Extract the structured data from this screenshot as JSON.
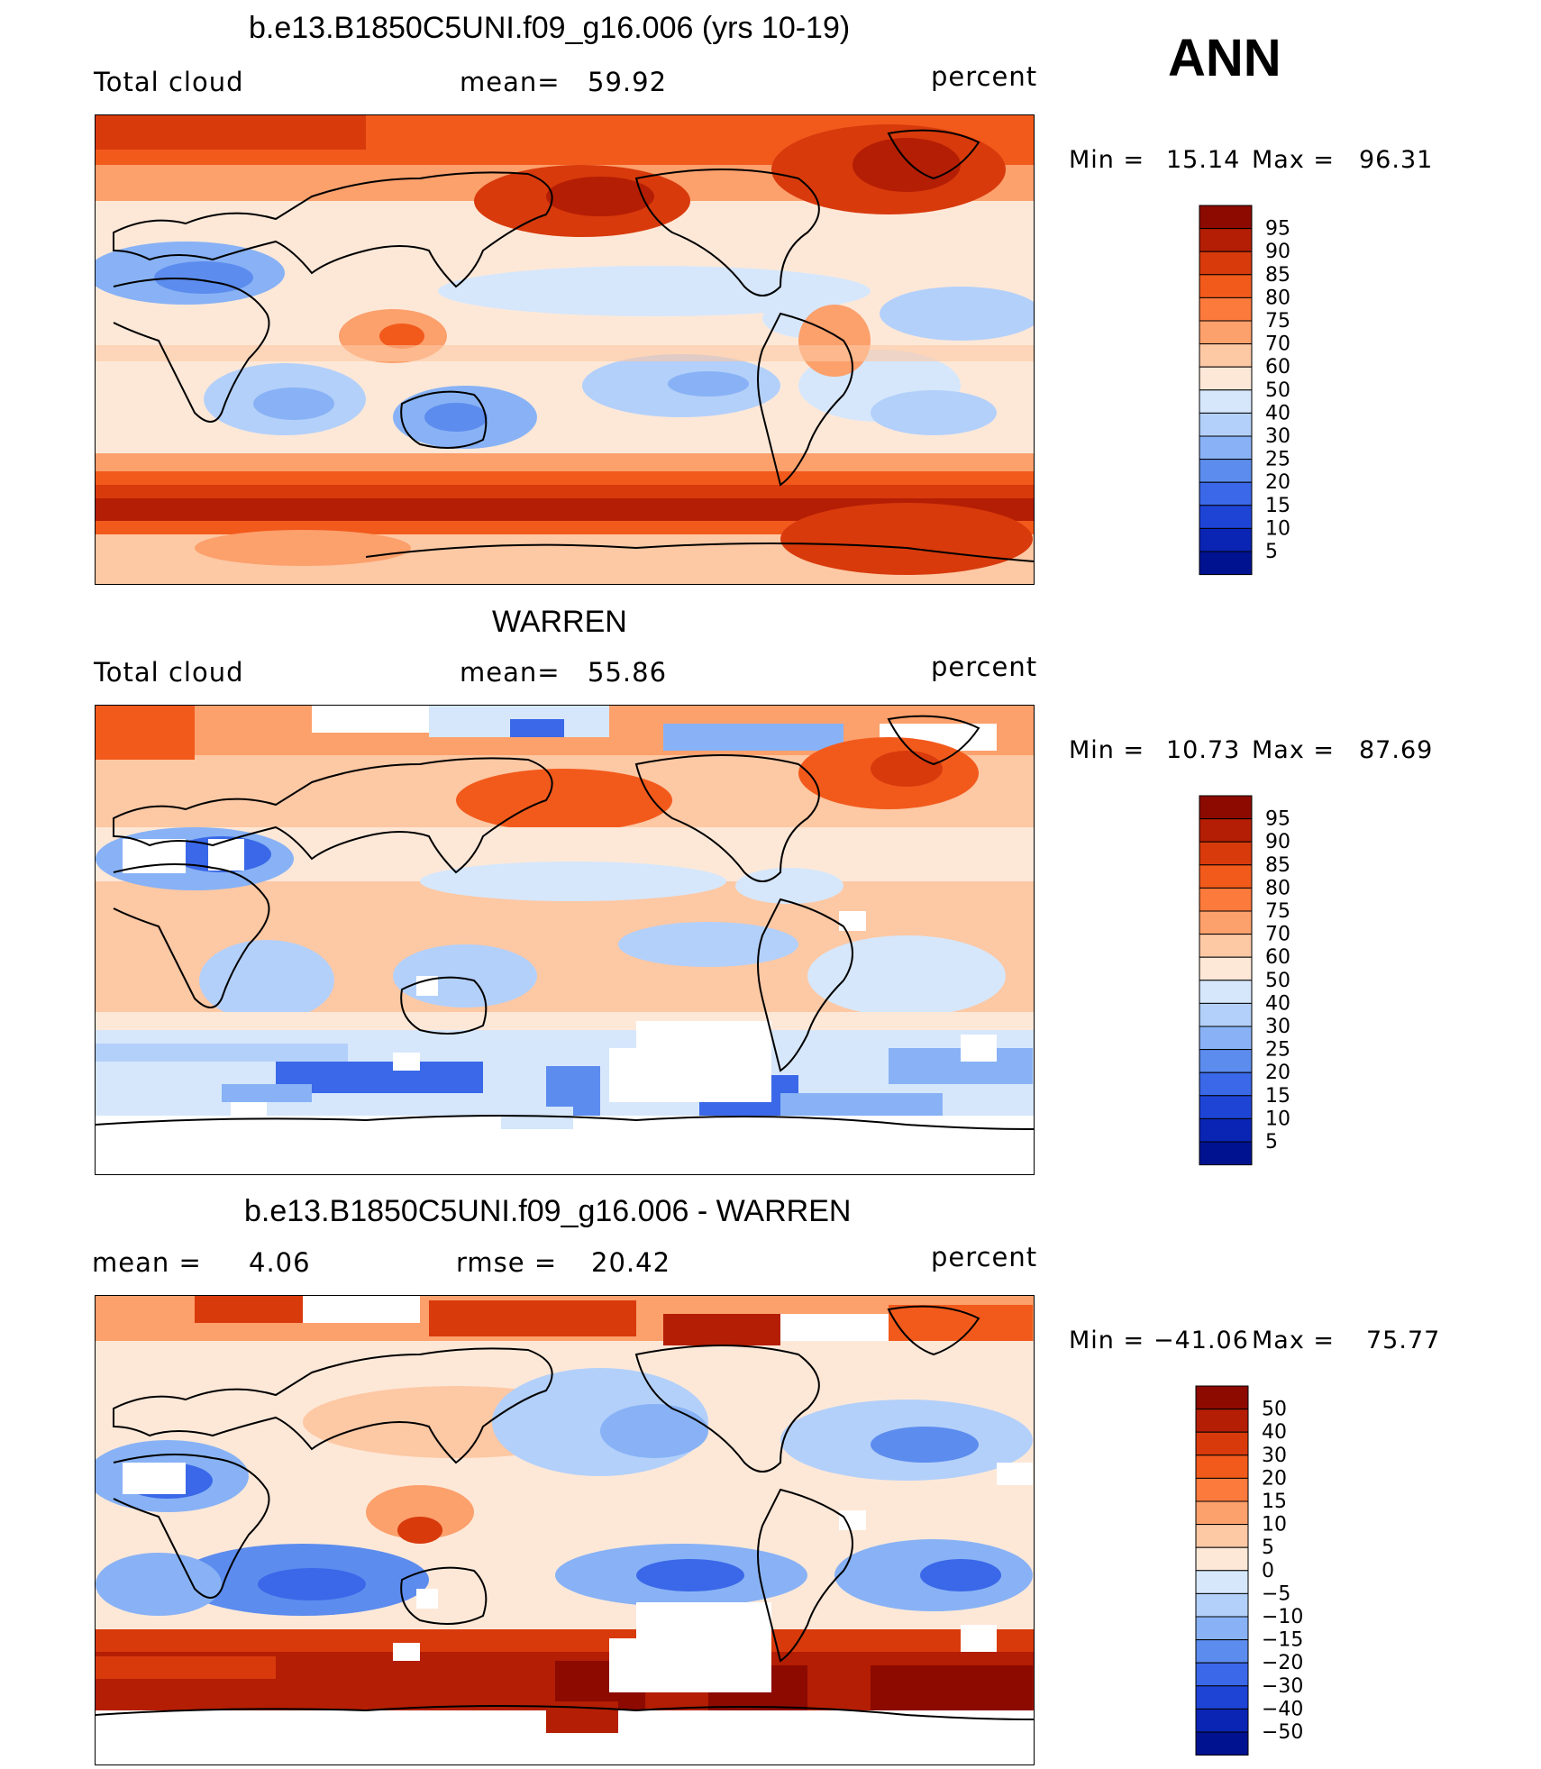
{
  "season": "ANN",
  "units_label": "percent",
  "panels": [
    {
      "title": "b.e13.B1850C5UNI.f09_g16.006 (yrs 10-19)",
      "left_label": "Total cloud",
      "mid_label": "mean=",
      "mid_value": "59.92",
      "right_label": "percent",
      "minmax": {
        "min_label": "Min =",
        "min_value": "15.14",
        "max_label": "Max =",
        "max_value": "96.31"
      },
      "colorbar": {
        "labels": [
          "95",
          "90",
          "85",
          "80",
          "75",
          "70",
          "60",
          "50",
          "40",
          "30",
          "25",
          "20",
          "15",
          "10",
          "5"
        ],
        "colors": [
          "#8c0a00",
          "#b41e04",
          "#d83a0c",
          "#f25a1c",
          "#fb7a3c",
          "#fca06c",
          "#fdc8a4",
          "#fde8d8",
          "#d6e7fb",
          "#b3d0fa",
          "#88b2f5",
          "#5c8cee",
          "#3a68e8",
          "#1e44d6",
          "#0a24b4",
          "#001290"
        ]
      }
    },
    {
      "title": "WARREN",
      "left_label": "Total cloud",
      "mid_label": "mean=",
      "mid_value": "55.86",
      "right_label": "percent",
      "minmax": {
        "min_label": "Min =",
        "min_value": "10.73",
        "max_label": "Max =",
        "max_value": "87.69"
      },
      "colorbar": {
        "labels": [
          "95",
          "90",
          "85",
          "80",
          "75",
          "70",
          "60",
          "50",
          "40",
          "30",
          "25",
          "20",
          "15",
          "10",
          "5"
        ],
        "colors": [
          "#8c0a00",
          "#b41e04",
          "#d83a0c",
          "#f25a1c",
          "#fb7a3c",
          "#fca06c",
          "#fdc8a4",
          "#fde8d8",
          "#d6e7fb",
          "#b3d0fa",
          "#88b2f5",
          "#5c8cee",
          "#3a68e8",
          "#1e44d6",
          "#0a24b4",
          "#001290"
        ]
      }
    },
    {
      "title": "b.e13.B1850C5UNI.f09_g16.006 - WARREN",
      "left_label": "mean =",
      "left_value": "4.06",
      "mid_label": "rmse =",
      "mid_value": "20.42",
      "right_label": "percent",
      "minmax": {
        "min_label": "Min =",
        "min_value": "−41.06",
        "max_label": "Max =",
        "max_value": "75.77"
      },
      "colorbar": {
        "labels": [
          "50",
          "40",
          "30",
          "20",
          "15",
          "10",
          "5",
          "0",
          "−5",
          "−10",
          "−15",
          "−20",
          "−30",
          "−40",
          "−50"
        ],
        "colors": [
          "#8c0a00",
          "#b41e04",
          "#d83a0c",
          "#f25a1c",
          "#fb7a3c",
          "#fca06c",
          "#fdc8a4",
          "#fde8d8",
          "#d6e7fb",
          "#b3d0fa",
          "#88b2f5",
          "#5c8cee",
          "#3a68e8",
          "#1e44d6",
          "#0a24b4",
          "#001290"
        ]
      }
    }
  ]
}
